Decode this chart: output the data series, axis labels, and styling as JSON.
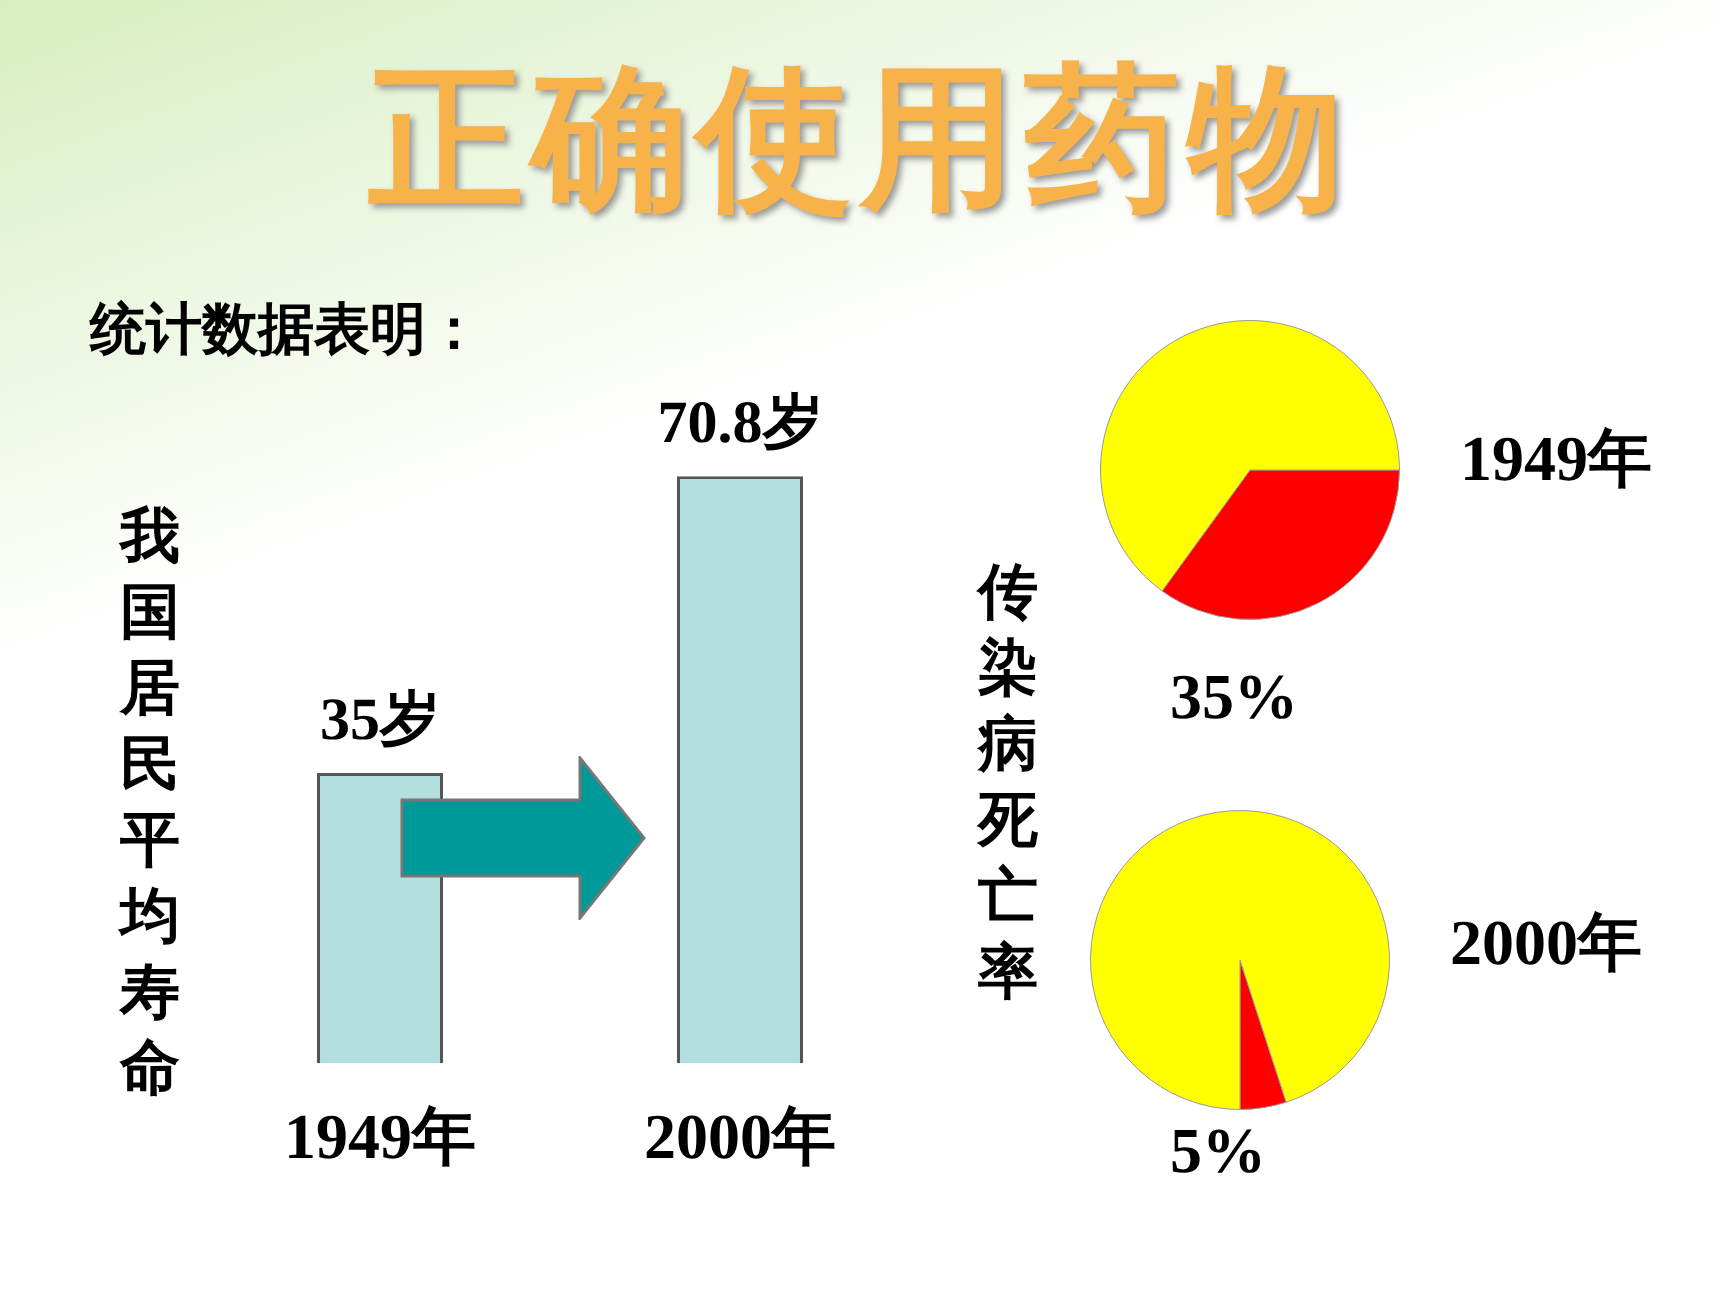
{
  "chart_data": [
    {
      "type": "bar",
      "title": "正确使用药物",
      "subtitle": "统计数据表明：",
      "ylabel": "我国居民平均寿命",
      "categories": [
        "1949年",
        "2000年"
      ],
      "values": [
        35,
        70.8
      ],
      "value_labels": [
        "35岁",
        "70.8岁"
      ],
      "color": "#b3dfdf",
      "tick_labels": "x",
      "grid": false,
      "legend": false
    },
    {
      "type": "pie",
      "title": "1949年",
      "annotations": [
        "传染病死亡率"
      ],
      "categories": [
        null,
        null
      ],
      "values": [
        35,
        65
      ],
      "colors": [
        "#ff0000",
        "#ffff00"
      ],
      "value_labels": [
        "35%",
        null
      ],
      "legend": false
    },
    {
      "type": "pie",
      "title": "2000年",
      "categories": [
        null,
        null
      ],
      "values": [
        5,
        95
      ],
      "colors": [
        "#ff0000",
        "#ffff00"
      ],
      "value_labels": [
        "5%",
        null
      ],
      "legend": false
    }
  ]
}
